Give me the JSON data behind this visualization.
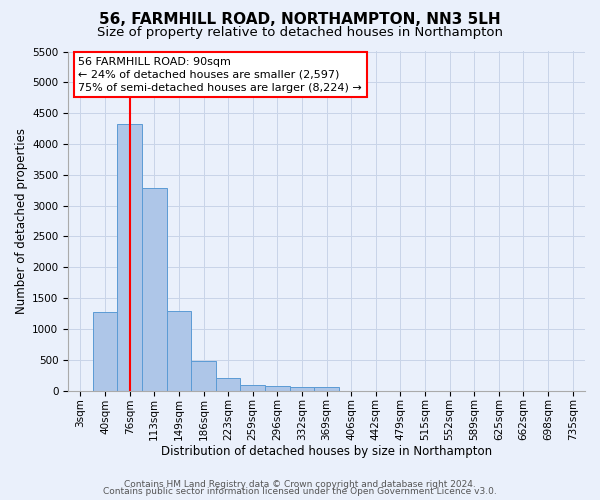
{
  "title": "56, FARMHILL ROAD, NORTHAMPTON, NN3 5LH",
  "subtitle": "Size of property relative to detached houses in Northampton",
  "xlabel": "Distribution of detached houses by size in Northampton",
  "ylabel": "Number of detached properties",
  "categories": [
    "3sqm",
    "40sqm",
    "76sqm",
    "113sqm",
    "149sqm",
    "186sqm",
    "223sqm",
    "259sqm",
    "296sqm",
    "332sqm",
    "369sqm",
    "406sqm",
    "442sqm",
    "479sqm",
    "515sqm",
    "552sqm",
    "589sqm",
    "625sqm",
    "662sqm",
    "698sqm",
    "735sqm"
  ],
  "bar_values": [
    0,
    1270,
    4320,
    3280,
    1290,
    480,
    210,
    90,
    70,
    55,
    60,
    0,
    0,
    0,
    0,
    0,
    0,
    0,
    0,
    0,
    0
  ],
  "bar_color": "#aec6e8",
  "bar_edge_color": "#5b9bd5",
  "red_line_index": 2,
  "annotation_line1": "56 FARMHILL ROAD: 90sqm",
  "annotation_line2": "← 24% of detached houses are smaller (2,597)",
  "annotation_line3": "75% of semi-detached houses are larger (8,224) →",
  "annotation_box_color": "white",
  "annotation_box_edgecolor": "red",
  "ylim": [
    0,
    5500
  ],
  "yticks": [
    0,
    500,
    1000,
    1500,
    2000,
    2500,
    3000,
    3500,
    4000,
    4500,
    5000,
    5500
  ],
  "footer_line1": "Contains HM Land Registry data © Crown copyright and database right 2024.",
  "footer_line2": "Contains public sector information licensed under the Open Government Licence v3.0.",
  "background_color": "#eaf0fb",
  "grid_color": "#c8d4e8",
  "title_fontsize": 11,
  "subtitle_fontsize": 9.5,
  "axis_label_fontsize": 8.5,
  "tick_fontsize": 7.5,
  "annotation_fontsize": 8,
  "footer_fontsize": 6.5
}
